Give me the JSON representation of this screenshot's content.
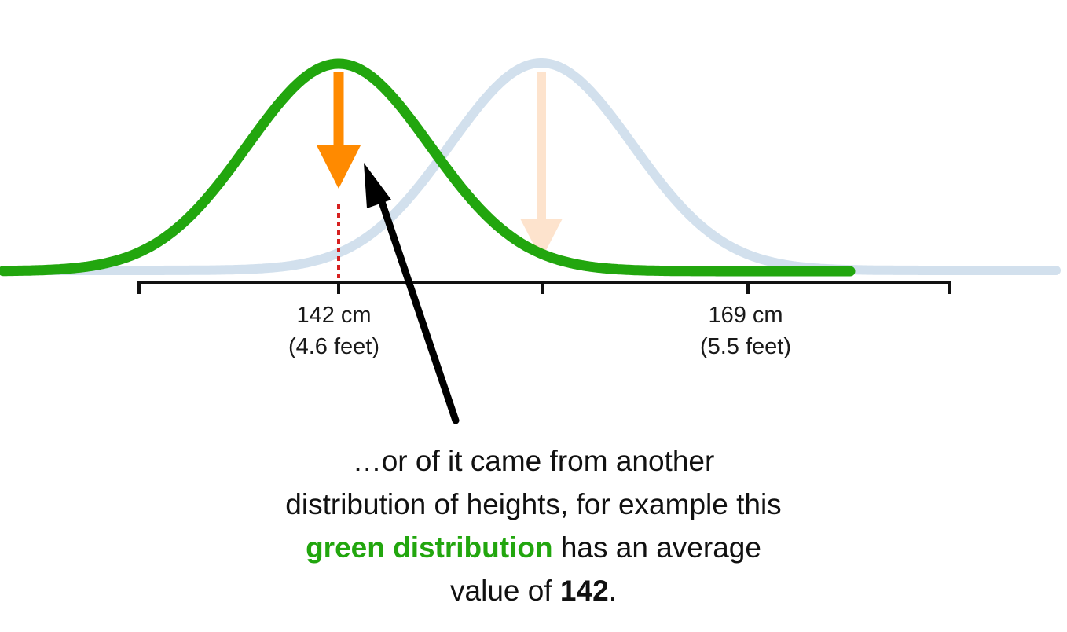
{
  "colors": {
    "green_curve": "#22a60e",
    "blue_curve": "#d2e0ed",
    "orange_arrow": "#ff8a00",
    "faded_orange_arrow": "#fde3cd",
    "red_dotted_line": "#d62020",
    "axis": "#111111",
    "pointer_arrow": "#000000"
  },
  "axis": {
    "tick_142": {
      "value": "142 cm",
      "feet": "(4.6 feet)"
    },
    "tick_169": {
      "value": "169 cm",
      "feet": "(5.5 feet)"
    }
  },
  "caption": {
    "line1": "…or of it came from another",
    "line2": "distribution of heights, for example this",
    "green_phrase": "green distribution",
    "line3_rest": " has an average",
    "line4_prefix": "value of ",
    "line4_value": "142",
    "line4_suffix": "."
  },
  "distributions": [
    {
      "name": "green distribution",
      "mean_cm": 142
    },
    {
      "name": "",
      "mean_cm": 169
    }
  ]
}
